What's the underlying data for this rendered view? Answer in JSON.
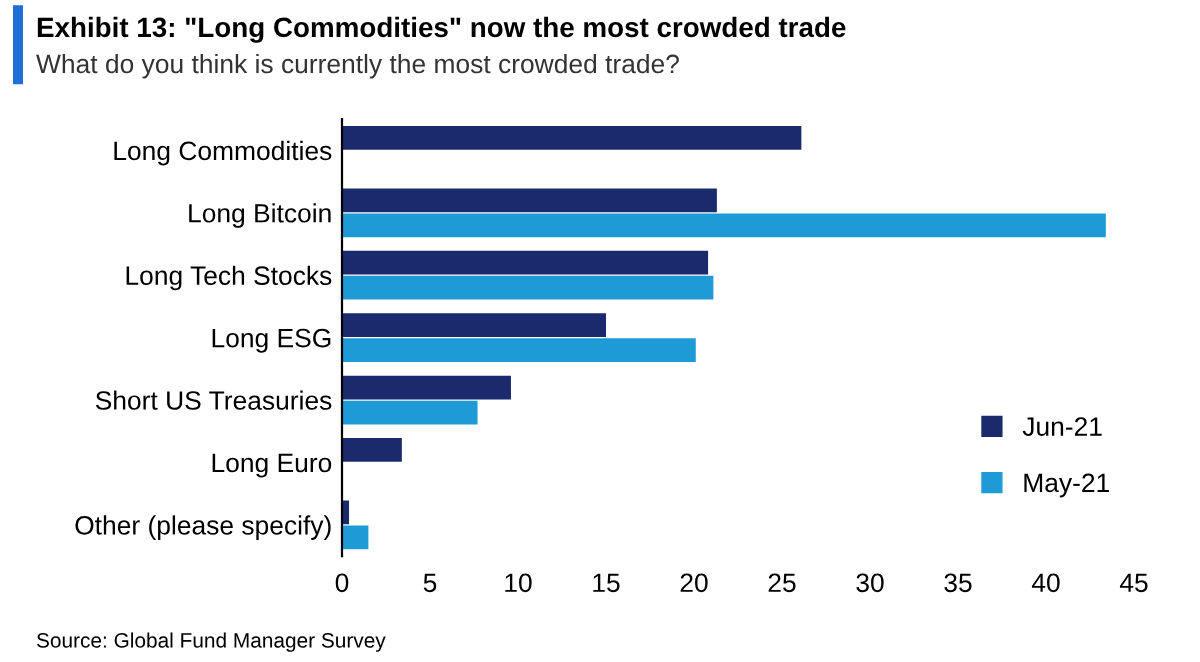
{
  "chart_data": {
    "type": "bar",
    "orientation": "horizontal",
    "title": "Exhibit 13: \"Long Commodities\" now the most crowded trade",
    "subtitle": "What do you think is currently the most crowded trade?",
    "categories": [
      "Long Commodities",
      "Long Bitcoin",
      "Long Tech Stocks",
      "Long ESG",
      "Short US Treasuries",
      "Long Euro",
      "Other (please specify)"
    ],
    "series": [
      {
        "name": "Jun-21",
        "color": "#1a2a6c",
        "values": [
          26.1,
          21.3,
          20.8,
          15.0,
          9.6,
          3.4,
          0.4
        ]
      },
      {
        "name": "May-21",
        "color": "#1e9ad6",
        "values": [
          null,
          43.4,
          21.1,
          20.1,
          7.7,
          null,
          1.5
        ]
      }
    ],
    "xlim": [
      0,
      45
    ],
    "xticks": [
      0,
      5,
      10,
      15,
      20,
      25,
      30,
      35,
      40,
      45
    ],
    "grid": false,
    "legend": "bottom right",
    "annotations": [
      "Source: Global Fund Manager Survey"
    ]
  }
}
